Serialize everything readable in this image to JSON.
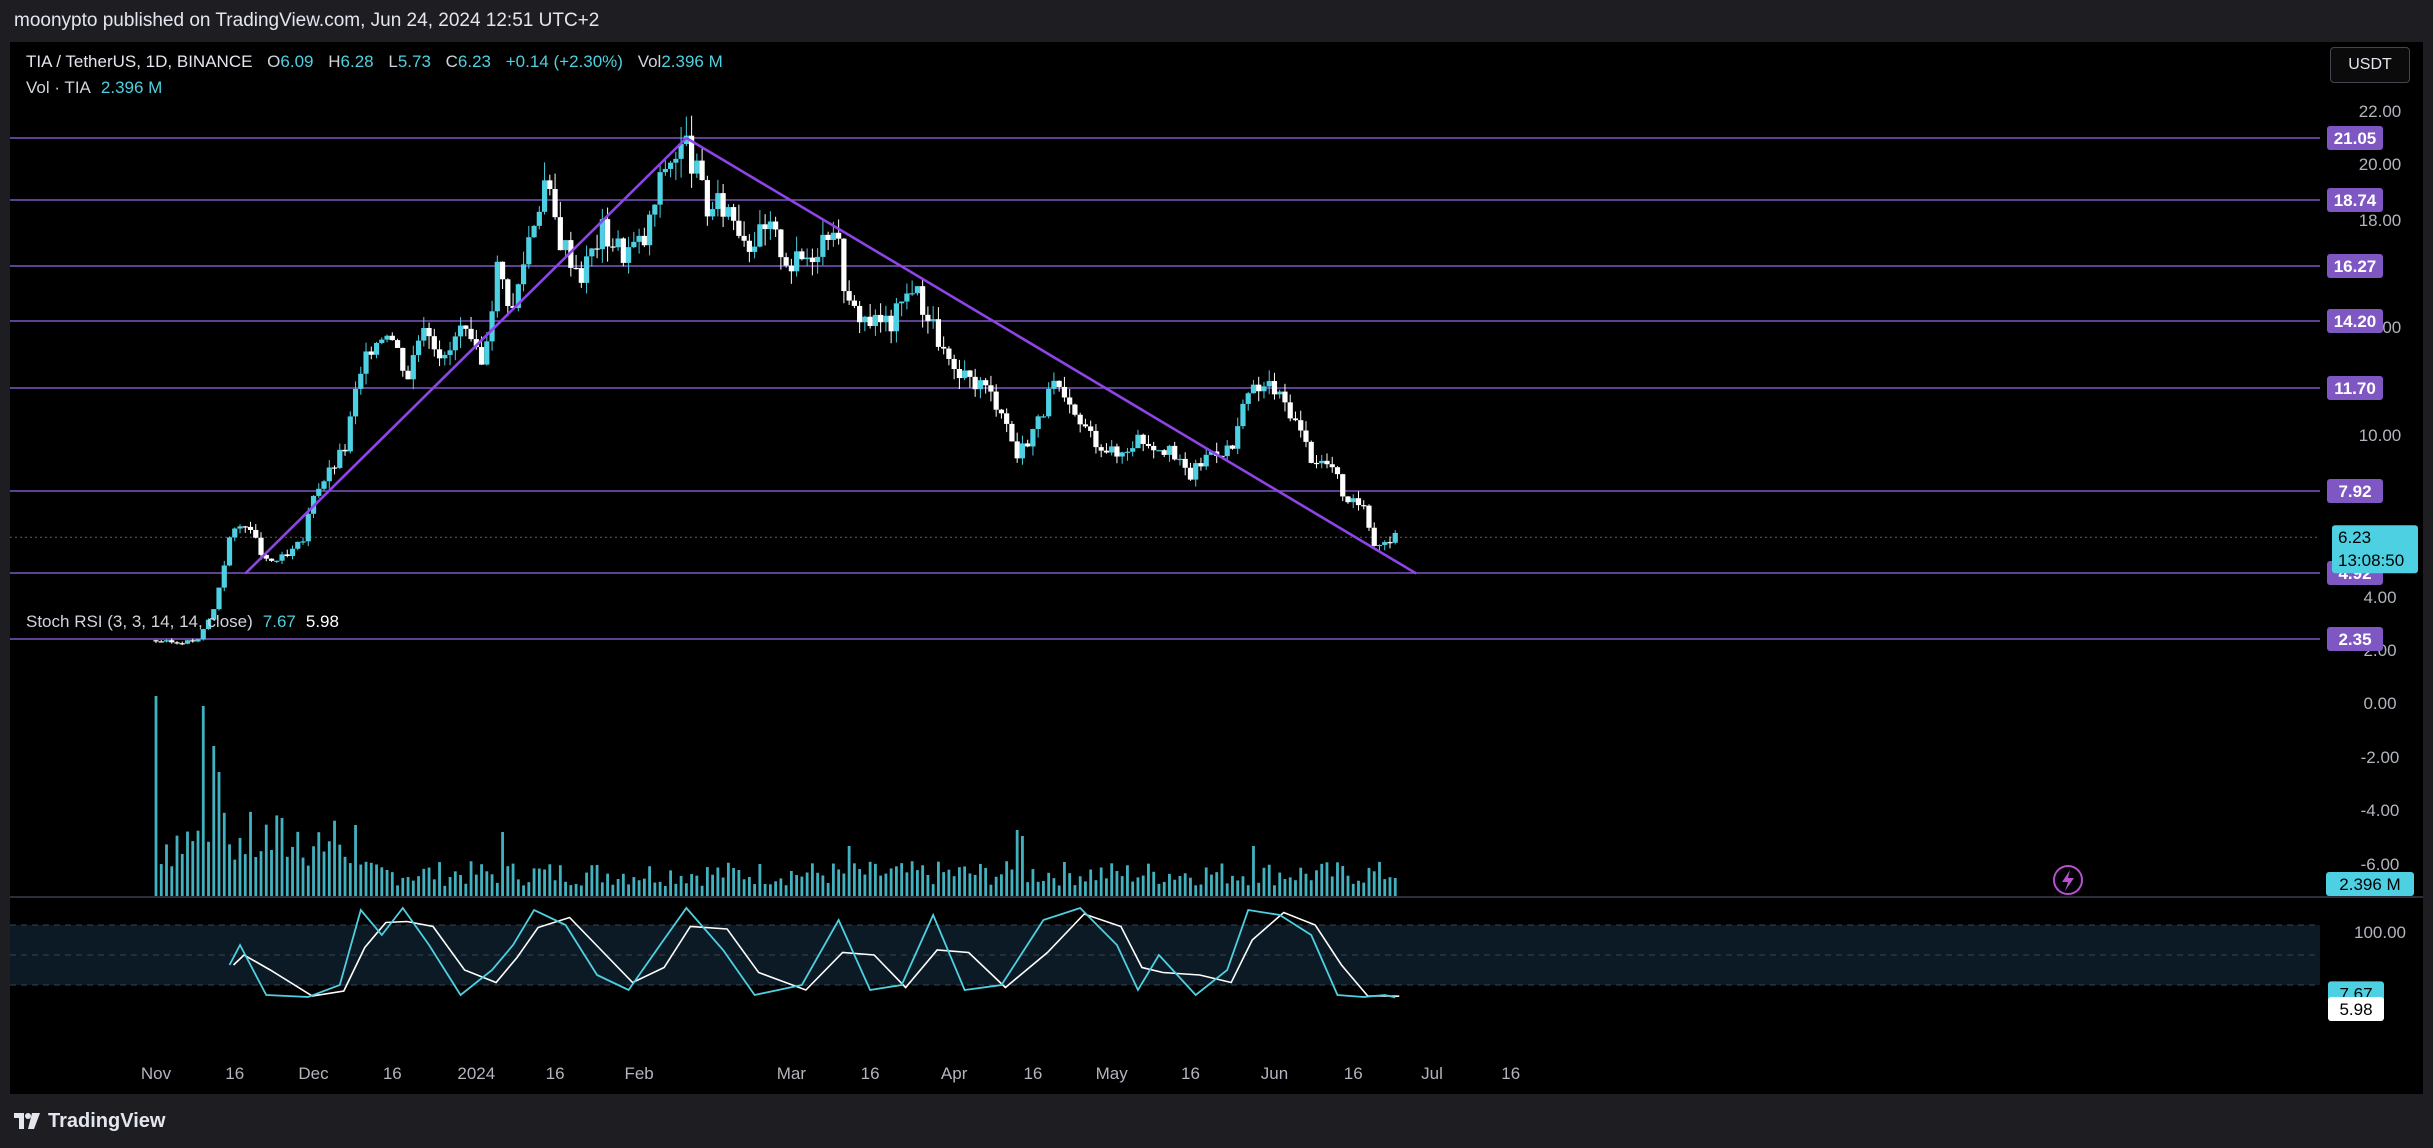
{
  "header": {
    "publisher_text": "moonypto published on TradingView.com, Jun 24, 2024 12:51 UTC+2"
  },
  "footer": {
    "brand": "TradingView"
  },
  "legend": {
    "symbol": "TIA / TetherUS, 1D, BINANCE",
    "o_key": "O",
    "o_val": "6.09",
    "h_key": "H",
    "h_val": "6.28",
    "l_key": "L",
    "l_val": "5.73",
    "c_key": "C",
    "c_val": "6.23",
    "change": "+0.14 (+2.30%)",
    "vol_key": "Vol",
    "vol_val": "2.396 M",
    "vol_line_label": "Vol · TIA",
    "vol_line_value": "2.396 M",
    "stoch_label": "Stoch RSI (3, 3, 14, 14, close)",
    "stoch_k": "7.67",
    "stoch_d": "5.98"
  },
  "currency_button": "USDT",
  "colors": {
    "up": "#4dd0e1",
    "down": "#ffffff",
    "level_line": "#7e57c2",
    "trend_line": "#8e44e8",
    "level_badge": "#7e57c2",
    "price_badge": "#4dd0e1",
    "stoch_k_line": "#4dd0e1",
    "stoch_d_line": "#ffffff",
    "stoch_band": "#0b1a24"
  },
  "chart_data": [
    {
      "type": "candlestick",
      "title": "TIA / TetherUS, 1D, BINANCE",
      "ylim": [
        0,
        22
      ],
      "yticks": [
        "22.00",
        "20.00",
        "18.00",
        "14.00",
        "10.00",
        "4.00",
        "2.00"
      ],
      "xticks": [
        "Nov",
        "16",
        "Dec",
        "16",
        "2024",
        "16",
        "Feb",
        "Mar",
        "16",
        "Apr",
        "16",
        "May",
        "16",
        "Jun",
        "16",
        "Jul",
        "16"
      ],
      "horizontal_levels": [
        "21.05",
        "18.74",
        "16.27",
        "14.20",
        "11.70",
        "7.92",
        "4.92",
        "2.35"
      ],
      "last_price": "6.23",
      "countdown": "13:08:50",
      "trendlines": [
        {
          "from": [
            "2023-11-18",
            4.9
          ],
          "to": [
            "2024-02-10",
            21.05
          ]
        },
        {
          "from": [
            "2024-02-10",
            21.05
          ],
          "to": [
            "2024-06-28",
            4.9
          ]
        }
      ],
      "price_path": [
        [
          "2023-10-31",
          2.3
        ],
        [
          "2023-11-05",
          2.2
        ],
        [
          "2023-11-09",
          2.3
        ],
        [
          "2023-11-12",
          3.5
        ],
        [
          "2023-11-15",
          6.2
        ],
        [
          "2023-11-18",
          6.8
        ],
        [
          "2023-11-22",
          5.3
        ],
        [
          "2023-11-26",
          5.5
        ],
        [
          "2023-11-29",
          6.1
        ],
        [
          "2023-12-01",
          7.9
        ],
        [
          "2023-12-04",
          8.6
        ],
        [
          "2023-12-07",
          9.5
        ],
        [
          "2023-12-09",
          11.5
        ],
        [
          "2023-12-12",
          13.3
        ],
        [
          "2023-12-15",
          14.0
        ],
        [
          "2023-12-19",
          12.2
        ],
        [
          "2023-12-22",
          14.3
        ],
        [
          "2023-12-26",
          12.7
        ],
        [
          "2023-12-29",
          13.9
        ],
        [
          "2024-01-02",
          12.5
        ],
        [
          "2024-01-05",
          16.2
        ],
        [
          "2024-01-08",
          14.6
        ],
        [
          "2024-01-11",
          17.4
        ],
        [
          "2024-01-14",
          19.4
        ],
        [
          "2024-01-17",
          17.3
        ],
        [
          "2024-01-21",
          16.0
        ],
        [
          "2024-01-25",
          17.6
        ],
        [
          "2024-01-29",
          16.8
        ],
        [
          "2024-02-02",
          17.2
        ],
        [
          "2024-02-06",
          20.0
        ],
        [
          "2024-02-10",
          20.8
        ],
        [
          "2024-02-14",
          18.4
        ],
        [
          "2024-02-18",
          18.5
        ],
        [
          "2024-02-22",
          17.2
        ],
        [
          "2024-02-26",
          17.6
        ],
        [
          "2024-03-01",
          16.3
        ],
        [
          "2024-03-05",
          16.8
        ],
        [
          "2024-03-09",
          18.0
        ],
        [
          "2024-03-12",
          14.7
        ],
        [
          "2024-03-16",
          14.2
        ],
        [
          "2024-03-20",
          14.1
        ],
        [
          "2024-03-24",
          15.6
        ],
        [
          "2024-03-28",
          14.0
        ],
        [
          "2024-04-01",
          12.1
        ],
        [
          "2024-04-06",
          11.9
        ],
        [
          "2024-04-10",
          11.0
        ],
        [
          "2024-04-13",
          9.2
        ],
        [
          "2024-04-17",
          10.5
        ],
        [
          "2024-04-20",
          11.8
        ],
        [
          "2024-04-23",
          10.8
        ],
        [
          "2024-04-28",
          9.8
        ],
        [
          "2024-05-02",
          9.2
        ],
        [
          "2024-05-06",
          9.9
        ],
        [
          "2024-05-11",
          9.5
        ],
        [
          "2024-05-16",
          8.5
        ],
        [
          "2024-05-20",
          9.4
        ],
        [
          "2024-05-24",
          9.5
        ],
        [
          "2024-05-27",
          11.5
        ],
        [
          "2024-05-31",
          11.8
        ],
        [
          "2024-06-04",
          10.9
        ],
        [
          "2024-06-08",
          9.2
        ],
        [
          "2024-06-12",
          8.8
        ],
        [
          "2024-06-15",
          7.4
        ],
        [
          "2024-06-18",
          7.5
        ],
        [
          "2024-06-20",
          6.0
        ],
        [
          "2024-06-22",
          6.1
        ],
        [
          "2024-06-24",
          6.23
        ]
      ]
    },
    {
      "type": "bar",
      "title": "Vol · TIA",
      "yticks": [
        "0.00",
        "-2.00",
        "-4.00",
        "-6.00"
      ],
      "last_value": "2.396 M",
      "spikes": [
        [
          "2023-11-01",
          1.0
        ],
        [
          "2023-11-10",
          0.95
        ],
        [
          "2023-11-12",
          0.75
        ],
        [
          "2023-11-13",
          0.62
        ],
        [
          "2024-01-06",
          0.32
        ],
        [
          "2024-03-12",
          0.25
        ],
        [
          "2024-04-13",
          0.33
        ],
        [
          "2024-04-14",
          0.3
        ],
        [
          "2024-05-28",
          0.25
        ]
      ]
    },
    {
      "type": "line",
      "title": "Stoch RSI (3, 3, 14, 14, close)",
      "ylim": [
        0,
        100
      ],
      "yticks": [
        "100.00"
      ],
      "band": [
        20,
        80
      ],
      "series": [
        {
          "name": "K",
          "last": "7.67"
        },
        {
          "name": "D",
          "last": "5.98"
        }
      ],
      "k_path": [
        [
          "2023-11-15",
          40
        ],
        [
          "2023-11-17",
          60
        ],
        [
          "2023-11-22",
          10
        ],
        [
          "2023-11-30",
          8
        ],
        [
          "2023-12-06",
          20
        ],
        [
          "2023-12-10",
          95
        ],
        [
          "2023-12-14",
          70
        ],
        [
          "2023-12-18",
          97
        ],
        [
          "2023-12-23",
          60
        ],
        [
          "2023-12-29",
          10
        ],
        [
          "2024-01-04",
          35
        ],
        [
          "2024-01-08",
          60
        ],
        [
          "2024-01-12",
          95
        ],
        [
          "2024-01-18",
          80
        ],
        [
          "2024-01-24",
          30
        ],
        [
          "2024-01-30",
          15
        ],
        [
          "2024-02-05",
          60
        ],
        [
          "2024-02-10",
          97
        ],
        [
          "2024-02-17",
          55
        ],
        [
          "2024-02-23",
          10
        ],
        [
          "2024-03-03",
          20
        ],
        [
          "2024-03-10",
          85
        ],
        [
          "2024-03-16",
          15
        ],
        [
          "2024-03-22",
          20
        ],
        [
          "2024-03-28",
          90
        ],
        [
          "2024-04-03",
          15
        ],
        [
          "2024-04-10",
          20
        ],
        [
          "2024-04-18",
          85
        ],
        [
          "2024-04-25",
          97
        ],
        [
          "2024-05-02",
          60
        ],
        [
          "2024-05-06",
          15
        ],
        [
          "2024-05-10",
          50
        ],
        [
          "2024-05-17",
          10
        ],
        [
          "2024-05-23",
          35
        ],
        [
          "2024-05-27",
          95
        ],
        [
          "2024-06-02",
          90
        ],
        [
          "2024-06-08",
          70
        ],
        [
          "2024-06-13",
          10
        ],
        [
          "2024-06-18",
          8
        ],
        [
          "2024-06-22",
          10
        ],
        [
          "2024-06-24",
          7.67
        ]
      ]
    }
  ]
}
